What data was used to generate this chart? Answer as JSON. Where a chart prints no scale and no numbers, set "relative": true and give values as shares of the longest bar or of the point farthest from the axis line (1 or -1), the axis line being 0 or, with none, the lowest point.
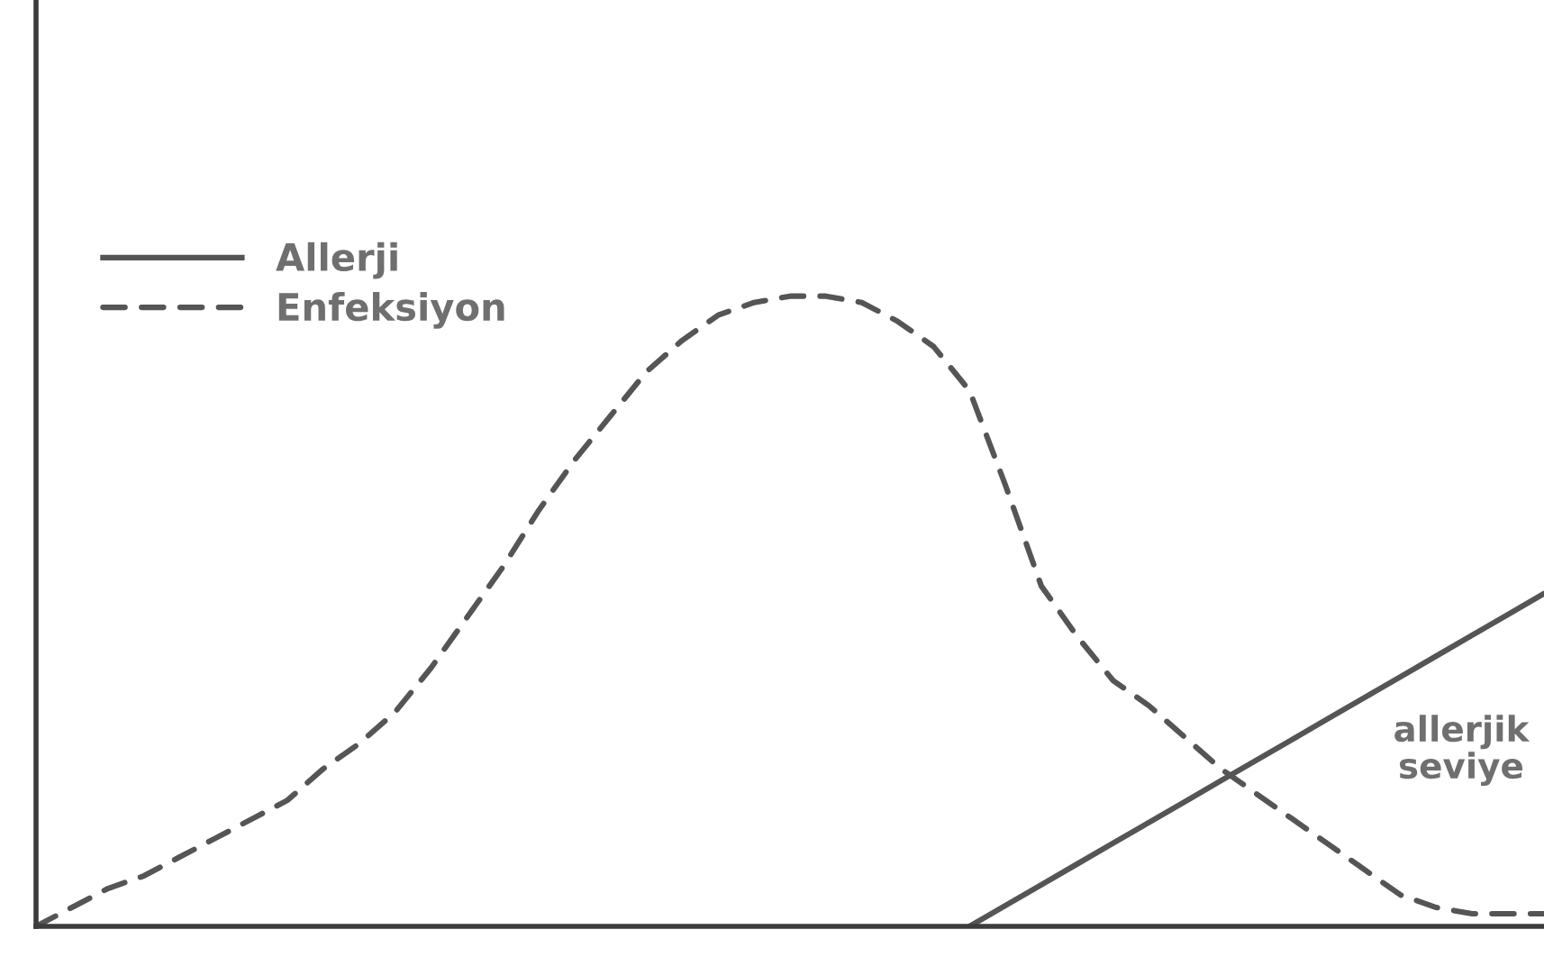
{
  "chart_data": {
    "type": "line",
    "relative": true,
    "legend": "top left",
    "categories": [
      null,
      null,
      null,
      null,
      null,
      null,
      null,
      null,
      null,
      null,
      null,
      null,
      null,
      null,
      null,
      null,
      null,
      null,
      null,
      null,
      null,
      null,
      null,
      null,
      null,
      null,
      null,
      null,
      null,
      null,
      null,
      null,
      null,
      null,
      null,
      null,
      null,
      null,
      null,
      null,
      null,
      null,
      null
    ],
    "series": [
      {
        "name": "Allerji",
        "color": "#555555",
        "line_style": "solid",
        "values": [
          null,
          null,
          null,
          null,
          null,
          null,
          null,
          null,
          null,
          null,
          null,
          null,
          null,
          null,
          null,
          null,
          null,
          null,
          null,
          null,
          null,
          null,
          null,
          null,
          null,
          null,
          0,
          0.033,
          0.066,
          0.099,
          0.132,
          0.165,
          0.198,
          0.231,
          0.264,
          0.297,
          0.33,
          0.363,
          0.396,
          0.429,
          0.462,
          0.495,
          0.528
        ]
      },
      {
        "name": "Enfeksiyon",
        "color": "#555555",
        "line_style": "dashed",
        "values": [
          0,
          0.03,
          0.06,
          0.08,
          0.11,
          0.14,
          0.17,
          0.2,
          0.25,
          0.29,
          0.34,
          0.41,
          0.49,
          0.57,
          0.66,
          0.74,
          0.81,
          0.88,
          0.93,
          0.97,
          0.99,
          1,
          1,
          0.99,
          0.96,
          0.92,
          0.85,
          0.7,
          0.54,
          0.46,
          0.39,
          0.35,
          0.3,
          0.25,
          0.21,
          0.17,
          0.13,
          0.09,
          0.05,
          0.03,
          0.02,
          0.02,
          0.02
        ]
      }
    ],
    "annotations": [
      "allerjik\nseviye"
    ]
  }
}
